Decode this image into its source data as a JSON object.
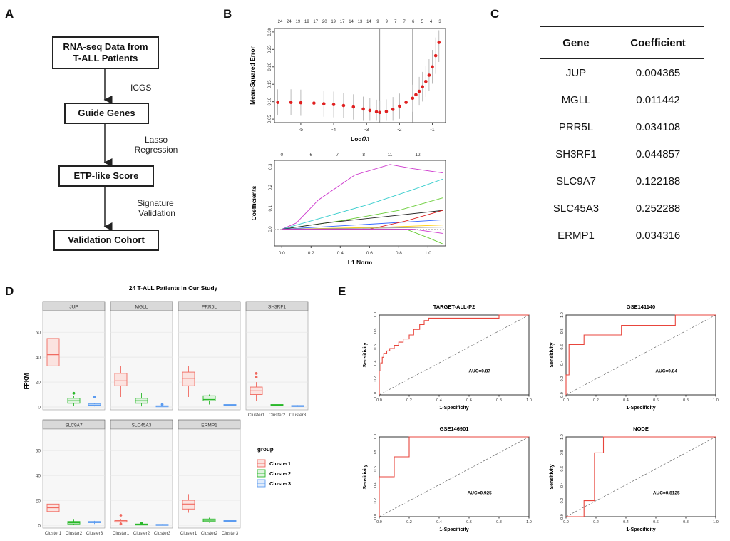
{
  "panels": {
    "a": "A",
    "b": "B",
    "c": "C",
    "d": "D",
    "e": "E"
  },
  "flowchart": {
    "boxes": [
      "RNA-seq Data from",
      "T-ALL Patients",
      "Guide Genes",
      "ETP-like Score",
      "Validation Cohort"
    ],
    "steps": [
      "ICGS",
      "Lasso",
      "Regression",
      "Signature",
      "Validation"
    ]
  },
  "coef_table": {
    "headers": [
      "Gene",
      "Coefficient"
    ],
    "rows": [
      [
        "JUP",
        "0.004365"
      ],
      [
        "MGLL",
        "0.011442"
      ],
      [
        "PRR5L",
        "0.034108"
      ],
      [
        "SH3RF1",
        "0.044857"
      ],
      [
        "SLC9A7",
        "0.122188"
      ],
      [
        "SLC45A3",
        "0.252288"
      ],
      [
        "ERMP1",
        "0.034316"
      ]
    ]
  },
  "chart_data": [
    {
      "id": "cv_mse",
      "type": "scatter",
      "title": "",
      "xlabel": "Log(λ)",
      "ylabel": "Mean-Squared Error",
      "xlim": [
        -5.8,
        -0.6
      ],
      "ylim": [
        0.04,
        0.31
      ],
      "xticks": [
        -5,
        -4,
        -3,
        -2,
        -1
      ],
      "yticks": [
        "0.05",
        "0.10",
        "0.15",
        "0.20",
        "0.25",
        "0.30"
      ],
      "top_ticks": [
        "24",
        "24",
        "19",
        "19",
        "17",
        "20",
        "19",
        "17",
        "14",
        "13",
        "14",
        "9",
        "9",
        "7",
        "7",
        "6",
        "5",
        "4",
        "3"
      ],
      "vlines": [
        -2.6,
        -1.6
      ],
      "curve_x": [
        -5.7,
        -5.3,
        -5.0,
        -4.6,
        -4.3,
        -4.0,
        -3.7,
        -3.4,
        -3.1,
        -2.9,
        -2.7,
        -2.6,
        -2.4,
        -2.2,
        -2.0,
        -1.8,
        -1.6,
        -1.5,
        -1.4,
        -1.3,
        -1.2,
        -1.1,
        -1.0,
        -0.9,
        -0.8
      ],
      "curve_y": [
        0.098,
        0.098,
        0.097,
        0.096,
        0.094,
        0.092,
        0.089,
        0.085,
        0.079,
        0.075,
        0.071,
        0.069,
        0.072,
        0.078,
        0.087,
        0.098,
        0.11,
        0.12,
        0.13,
        0.143,
        0.158,
        0.176,
        0.2,
        0.232,
        0.27
      ],
      "err": 0.045
    },
    {
      "id": "coef_path",
      "type": "line",
      "xlabel": "L1 Norm",
      "ylabel": "Coefficients",
      "xlim": [
        -0.05,
        1.12
      ],
      "ylim": [
        -0.08,
        0.33
      ],
      "xticks": [
        0.0,
        0.2,
        0.4,
        0.6,
        0.8,
        1.0
      ],
      "xtick_labels": [
        "0.0",
        "0.2",
        "0.4",
        "0.6",
        "0.8",
        "1.0"
      ],
      "yticks": [
        0.0,
        0.1,
        0.2,
        0.3
      ],
      "ytick_labels": [
        "0.0",
        "0.1",
        "0.2",
        "0.3"
      ],
      "top_ticks": [
        "0",
        "6",
        "7",
        "8",
        "11",
        "12"
      ],
      "top_tick_x": [
        0.0,
        0.2,
        0.38,
        0.56,
        0.74,
        0.93
      ],
      "series": [
        {
          "name": "s1",
          "color": "#cc33cc",
          "x": [
            0.0,
            0.1,
            0.25,
            0.5,
            0.74,
            0.9,
            1.1
          ],
          "y": [
            0.0,
            0.03,
            0.14,
            0.26,
            0.31,
            0.29,
            0.27
          ]
        },
        {
          "name": "s2",
          "color": "#33cccc",
          "x": [
            0.0,
            0.3,
            0.6,
            0.9,
            1.1
          ],
          "y": [
            0.0,
            0.06,
            0.12,
            0.19,
            0.24
          ]
        },
        {
          "name": "s3",
          "color": "#66cc33",
          "x": [
            0.0,
            0.4,
            0.8,
            1.1
          ],
          "y": [
            0.0,
            0.04,
            0.09,
            0.15
          ]
        },
        {
          "name": "s4",
          "color": "#222222",
          "x": [
            0.0,
            0.3,
            0.7,
            1.1
          ],
          "y": [
            0.0,
            0.03,
            0.06,
            0.09
          ]
        },
        {
          "name": "s5",
          "color": "#3366ff",
          "x": [
            0.0,
            0.5,
            1.1
          ],
          "y": [
            0.0,
            0.02,
            0.045
          ]
        },
        {
          "name": "s6",
          "color": "#dd2222",
          "x": [
            0.0,
            0.6,
            0.85,
            1.1
          ],
          "y": [
            0.0,
            0.0,
            0.04,
            0.09
          ]
        },
        {
          "name": "s7",
          "color": "#ffcc00",
          "x": [
            0.0,
            0.7,
            1.1
          ],
          "y": [
            0.0,
            0.01,
            0.02
          ]
        },
        {
          "name": "s8",
          "color": "#999999",
          "x": [
            0.0,
            0.6,
            1.1
          ],
          "y": [
            0.0,
            0.005,
            0.01
          ]
        },
        {
          "name": "s9",
          "color": "#66cc33",
          "x": [
            0.0,
            0.85,
            1.0,
            1.1
          ],
          "y": [
            0.0,
            0.0,
            -0.04,
            -0.07
          ]
        },
        {
          "name": "s10",
          "color": "#cc33cc",
          "x": [
            0.0,
            0.9,
            1.1
          ],
          "y": [
            0.0,
            0.0,
            -0.02
          ]
        }
      ]
    },
    {
      "id": "boxplots",
      "type": "bar",
      "title": "24 T-ALL Patients in Our Study",
      "ylabel": "FPKM",
      "ylim": [
        0,
        75
      ],
      "yticks": [
        0,
        20,
        40,
        60
      ],
      "ytick_labels": [
        "0",
        "20",
        "40",
        "60"
      ],
      "categories": [
        "Cluster1",
        "Cluster2",
        "Cluster3"
      ],
      "colors": [
        "#f06a60",
        "#2ab82a",
        "#5b9bf0"
      ],
      "legend_title": "group",
      "legend": [
        "Cluster1",
        "Cluster2",
        "Cluster3"
      ],
      "facets": [
        {
          "gene": "JUP",
          "boxes": [
            [
              18,
              33,
              42,
              55,
              75,
              []
            ],
            [
              1,
              3,
              5,
              7,
              9,
              [
                11
              ]
            ],
            [
              0.5,
              1,
              1.5,
              2.5,
              3,
              [
                8
              ]
            ]
          ]
        },
        {
          "gene": "MGLL",
          "boxes": [
            [
              8,
              17,
              21,
              27,
              33,
              []
            ],
            [
              0.5,
              3,
              5,
              7,
              11,
              []
            ],
            [
              0.2,
              0.5,
              0.8,
              1,
              1.5,
              [
                2
              ]
            ]
          ]
        },
        {
          "gene": "PRR5L",
          "boxes": [
            [
              8,
              17,
              23,
              28,
              33,
              []
            ],
            [
              2,
              5,
              6,
              9,
              10,
              []
            ],
            [
              0.5,
              1,
              1.5,
              2,
              2.5,
              []
            ]
          ]
        },
        {
          "gene": "SH3RF1",
          "boxes": [
            [
              5,
              10,
              13,
              16,
              20,
              [
                24,
                27
              ]
            ],
            [
              0.3,
              1,
              1.5,
              2,
              2.5,
              []
            ],
            [
              0.2,
              0.5,
              1,
              1.2,
              1.5,
              []
            ]
          ]
        },
        {
          "gene": "SLC9A7",
          "boxes": [
            [
              7,
              11,
              14,
              17,
              20,
              []
            ],
            [
              0.3,
              1,
              2,
              3,
              5,
              []
            ],
            [
              1,
              2,
              2.5,
              3,
              3.5,
              []
            ]
          ]
        },
        {
          "gene": "SLC45A3",
          "boxes": [
            [
              1,
              2.5,
              3.5,
              4,
              5,
              [
                8,
                1
              ]
            ],
            [
              0.2,
              0.5,
              0.8,
              1,
              1.2,
              [
                1.8
              ]
            ],
            [
              0.2,
              0.3,
              0.5,
              0.7,
              0.9,
              []
            ]
          ]
        },
        {
          "gene": "ERMP1",
          "boxes": [
            [
              10,
              13,
              17,
              20,
              25,
              []
            ],
            [
              2,
              3,
              4,
              5,
              6,
              []
            ],
            [
              2,
              3,
              3.5,
              4,
              5,
              []
            ]
          ]
        }
      ]
    },
    {
      "id": "roc_target",
      "type": "line",
      "title": "TARGET-ALL-P2",
      "auc_label": "AUC=0.87",
      "xlabel": "1-Specificity",
      "ylabel": "Sensitivity",
      "xlim": [
        0,
        1
      ],
      "ylim": [
        0,
        1
      ],
      "xticks": [
        0.0,
        0.2,
        0.4,
        0.6,
        0.8,
        1.0
      ],
      "yticks": [
        0.0,
        0.2,
        0.4,
        0.6,
        0.8,
        1.0
      ],
      "tick_labels": [
        "0.0",
        "0.2",
        "0.4",
        "0.6",
        "0.8",
        "1.0"
      ],
      "x": [
        0,
        0,
        0.01,
        0.01,
        0.02,
        0.02,
        0.03,
        0.03,
        0.05,
        0.05,
        0.07,
        0.07,
        0.1,
        0.1,
        0.13,
        0.13,
        0.16,
        0.16,
        0.2,
        0.2,
        0.23,
        0.23,
        0.27,
        0.27,
        0.3,
        0.3,
        0.33,
        0.33,
        0.8,
        0.8,
        1.0
      ],
      "y": [
        0,
        0.3,
        0.3,
        0.4,
        0.4,
        0.47,
        0.47,
        0.52,
        0.52,
        0.55,
        0.55,
        0.58,
        0.58,
        0.62,
        0.62,
        0.66,
        0.66,
        0.7,
        0.7,
        0.75,
        0.75,
        0.82,
        0.82,
        0.88,
        0.88,
        0.93,
        0.93,
        0.96,
        0.96,
        1.0,
        1.0
      ]
    },
    {
      "id": "roc_gse141140",
      "type": "line",
      "title": "GSE141140",
      "auc_label": "AUC=0.84",
      "xlabel": "1-Specificity",
      "ylabel": "Sensitivity",
      "xlim": [
        0,
        1
      ],
      "ylim": [
        0,
        1
      ],
      "xticks": [
        0.0,
        0.2,
        0.4,
        0.6,
        0.8,
        1.0
      ],
      "yticks": [
        0.0,
        0.2,
        0.4,
        0.6,
        0.8,
        1.0
      ],
      "tick_labels": [
        "0.0",
        "0.2",
        "0.4",
        "0.6",
        "0.8",
        "1.0"
      ],
      "x": [
        0,
        0,
        0.02,
        0.02,
        0.12,
        0.12,
        0.37,
        0.37,
        0.73,
        0.73,
        1.0
      ],
      "y": [
        0,
        0.25,
        0.25,
        0.63,
        0.63,
        0.75,
        0.75,
        0.87,
        0.87,
        1.0,
        1.0
      ]
    },
    {
      "id": "roc_gse146901",
      "type": "line",
      "title": "GSE146901",
      "auc_label": "AUC=0.925",
      "xlabel": "1-Specificity",
      "ylabel": "Sensitivity",
      "xlim": [
        0,
        1
      ],
      "ylim": [
        0,
        1
      ],
      "xticks": [
        0.0,
        0.2,
        0.4,
        0.6,
        0.8,
        1.0
      ],
      "yticks": [
        0.0,
        0.2,
        0.4,
        0.6,
        0.8,
        1.0
      ],
      "tick_labels": [
        "0.0",
        "0.2",
        "0.4",
        "0.6",
        "0.8",
        "1.0"
      ],
      "x": [
        0,
        0,
        0.1,
        0.1,
        0.2,
        0.2,
        1.0
      ],
      "y": [
        0,
        0.5,
        0.5,
        0.75,
        0.75,
        1.0,
        1.0
      ]
    },
    {
      "id": "roc_node",
      "type": "line",
      "title": "NODE",
      "auc_label": "AUC=0.8125",
      "xlabel": "1-Specificity",
      "ylabel": "Sensitivity",
      "xlim": [
        0,
        1
      ],
      "ylim": [
        0,
        1
      ],
      "xticks": [
        0.0,
        0.2,
        0.4,
        0.6,
        0.8,
        1.0
      ],
      "yticks": [
        0.0,
        0.2,
        0.4,
        0.6,
        0.8,
        1.0
      ],
      "tick_labels": [
        "0.0",
        "0.2",
        "0.4",
        "0.6",
        "0.8",
        "1.0"
      ],
      "x": [
        0,
        0.12,
        0.12,
        0.19,
        0.19,
        0.25,
        0.25,
        1.0
      ],
      "y": [
        0,
        0,
        0.2,
        0.2,
        0.8,
        0.8,
        1.0,
        1.0
      ]
    }
  ]
}
